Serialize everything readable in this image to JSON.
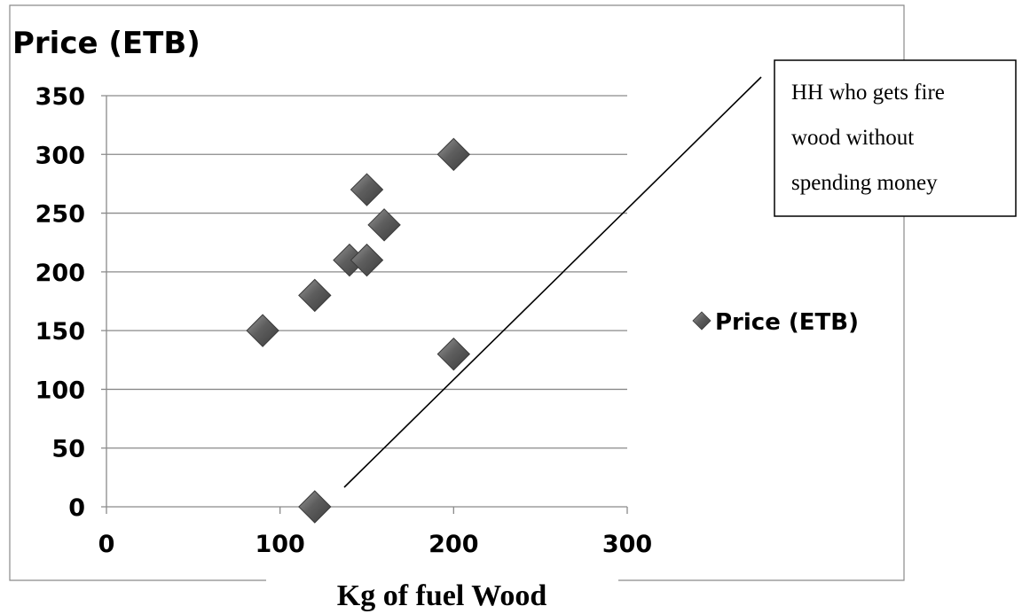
{
  "chart_data": {
    "type": "scatter",
    "title": "",
    "ylabel": "Price (ETB)",
    "xlabel": "Kg of fuel Wood",
    "xlim": [
      0,
      300
    ],
    "ylim": [
      0,
      350
    ],
    "x_ticks": [
      "0",
      "100",
      "200",
      "300"
    ],
    "y_ticks": [
      "0",
      "50",
      "100",
      "150",
      "200",
      "250",
      "300",
      "350"
    ],
    "x_tick_values": [
      0,
      100,
      200,
      300
    ],
    "y_tick_values": [
      0,
      50,
      100,
      150,
      200,
      250,
      300,
      350
    ],
    "grid": "horizontal",
    "legend_position": "right",
    "marker": "diamond",
    "marker_color": "#555555",
    "series": [
      {
        "name": "Price (ETB)",
        "points": [
          {
            "x": 90,
            "y": 150
          },
          {
            "x": 120,
            "y": 180
          },
          {
            "x": 120,
            "y": 0
          },
          {
            "x": 140,
            "y": 210
          },
          {
            "x": 150,
            "y": 210
          },
          {
            "x": 150,
            "y": 270
          },
          {
            "x": 160,
            "y": 240
          },
          {
            "x": 200,
            "y": 300
          },
          {
            "x": 200,
            "y": 130
          }
        ]
      }
    ],
    "annotation": {
      "lines": [
        "HH who gets fire",
        "wood without",
        "spending money"
      ]
    }
  }
}
